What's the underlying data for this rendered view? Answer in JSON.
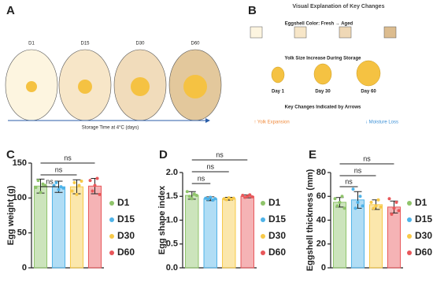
{
  "panel_a": {
    "panel": "A",
    "eggs": [
      "D1",
      "D15",
      "D30",
      "D60"
    ],
    "axis_label": "Storage Time at 4°C (days)"
  },
  "panel_b": {
    "panel": "B",
    "title": "Visual Explanation of Key Changes",
    "color_title": "Eggshell Color: Fresh → Aged",
    "yolk_title": "Yolk Size Increase During Storage",
    "yolk_labels": [
      "Day 1",
      "Day 30",
      "Day 60"
    ],
    "arrow_title": "Key Changes Indicated by Arrows",
    "arrow_labels": [
      "↑ Yolk Expansion",
      "↓ Moisture Loss"
    ]
  },
  "chart_data": [
    {
      "type": "bar",
      "panel": "C",
      "ylabel": "Egg weight (g)",
      "categories": [
        "D1",
        "D15",
        "D30",
        "D60"
      ],
      "colors": [
        "#8fc46a",
        "#4fb3e8",
        "#f7c948",
        "#e8575a"
      ],
      "values": [
        117,
        116,
        116,
        117
      ],
      "errors": [
        10,
        8,
        10,
        11
      ],
      "points": [
        [
          115,
          125,
          108,
          120,
          118
        ],
        [
          118,
          122,
          112,
          116,
          114
        ],
        [
          110,
          122,
          105,
          118,
          124
        ],
        [
          125,
          110,
          118,
          128,
          105
        ]
      ],
      "ylim": [
        0,
        150
      ],
      "yticks": [
        0,
        50,
        100,
        150
      ],
      "annotations": [
        "ns",
        "ns",
        "ns"
      ]
    },
    {
      "type": "bar",
      "panel": "D",
      "ylabel": "Egg shape index",
      "categories": [
        "D1",
        "D15",
        "D30",
        "D60"
      ],
      "colors": [
        "#8fc46a",
        "#4fb3e8",
        "#f7c948",
        "#e8575a"
      ],
      "values": [
        1.52,
        1.45,
        1.45,
        1.5
      ],
      "errors": [
        0.08,
        0.04,
        0.03,
        0.03
      ],
      "points": [
        [
          1.6,
          1.5,
          1.45,
          1.55,
          1.52
        ],
        [
          1.46,
          1.44,
          1.48,
          1.42,
          1.45
        ],
        [
          1.45,
          1.43,
          1.47,
          1.44,
          1.46
        ],
        [
          1.52,
          1.48,
          1.5,
          1.53,
          1.49
        ]
      ],
      "ylim": [
        0,
        2
      ],
      "yticks": [
        {
          "value": 0,
          "label": "0.0"
        },
        0.5,
        {
          "value": 1,
          "label": "1.0"
        },
        1.5,
        {
          "value": 2,
          "label": "2.0"
        }
      ],
      "annotations": [
        "ns",
        "ns",
        "ns"
      ]
    },
    {
      "type": "bar",
      "panel": "E",
      "ylabel": "Eggshell thickness (mm)",
      "categories": [
        "D1",
        "D15",
        "D30",
        "D60"
      ],
      "colors": [
        "#8fc46a",
        "#4fb3e8",
        "#f7c948",
        "#e8575a"
      ],
      "values": [
        55,
        57,
        53,
        51
      ],
      "errors": [
        4,
        7,
        4,
        5
      ],
      "points": [
        [
          58,
          52,
          55,
          60,
          50
        ],
        [
          66,
          50,
          55,
          60,
          52
        ],
        [
          55,
          50,
          52,
          57,
          51
        ],
        [
          58,
          45,
          50,
          55,
          48
        ]
      ],
      "ylim": [
        0,
        80
      ],
      "yticks": [
        0,
        20,
        40,
        60,
        80
      ],
      "annotations": [
        "ns",
        "ns",
        "ns"
      ]
    }
  ]
}
